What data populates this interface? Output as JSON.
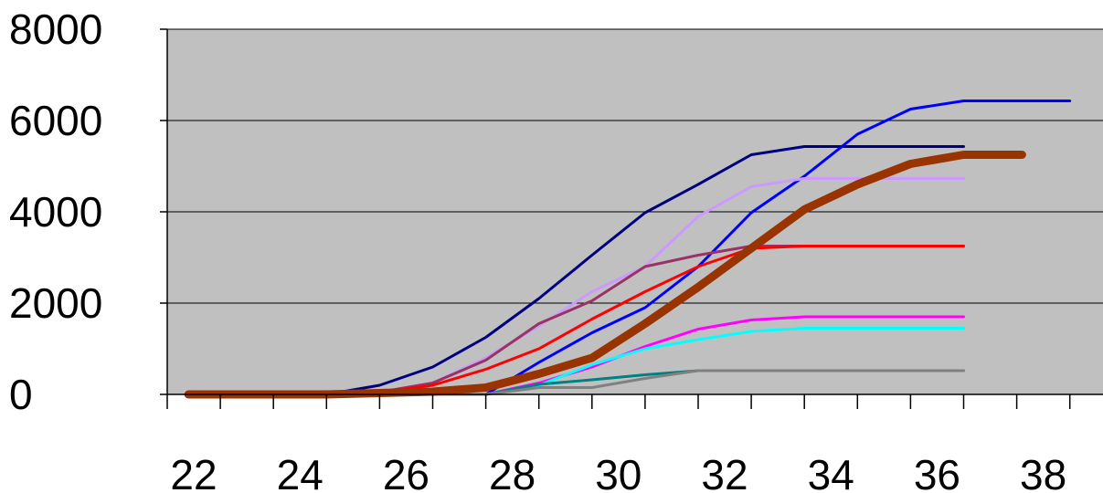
{
  "chart_data": {
    "type": "line",
    "xlabel": "",
    "ylabel": "",
    "xlim": [
      22,
      39
    ],
    "ylim": [
      0,
      8000
    ],
    "x_ticks": [
      22,
      24,
      26,
      28,
      30,
      32,
      34,
      36,
      38
    ],
    "y_ticks": [
      0,
      2000,
      4000,
      6000,
      8000
    ],
    "x_tick_labels": [
      "22",
      "24",
      "26",
      "28",
      "30",
      "32",
      "34",
      "36",
      "38"
    ],
    "y_tick_labels": [
      "0",
      "2000",
      "4000",
      "6000",
      "8000"
    ],
    "grid": "horizontal",
    "plot_background": "#c0c0c0",
    "series": [
      {
        "color": "#000080",
        "width": 3,
        "points": [
          [
            22.4,
            0
          ],
          [
            25,
            0
          ],
          [
            26,
            200
          ],
          [
            27,
            600
          ],
          [
            28,
            1250
          ],
          [
            29,
            2100
          ],
          [
            30,
            3050
          ],
          [
            31,
            3980
          ],
          [
            32,
            4600
          ],
          [
            33,
            5250
          ],
          [
            34,
            5430
          ],
          [
            37,
            5430
          ]
        ]
      },
      {
        "color": "#0000ff",
        "width": 3,
        "points": [
          [
            22.4,
            0
          ],
          [
            28,
            0
          ],
          [
            29,
            700
          ],
          [
            30,
            1350
          ],
          [
            31,
            1900
          ],
          [
            32,
            2800
          ],
          [
            33,
            3980
          ],
          [
            34,
            4780
          ],
          [
            35,
            5700
          ],
          [
            36,
            6250
          ],
          [
            37,
            6430
          ],
          [
            39,
            6430
          ]
        ]
      },
      {
        "color": "#cc99ff",
        "width": 3,
        "points": [
          [
            22.4,
            0
          ],
          [
            26,
            50
          ],
          [
            27,
            250
          ],
          [
            28,
            800
          ],
          [
            29,
            1500
          ],
          [
            30,
            2250
          ],
          [
            31,
            2800
          ],
          [
            32,
            3900
          ],
          [
            33,
            4550
          ],
          [
            34,
            4730
          ],
          [
            37,
            4730
          ]
        ]
      },
      {
        "color": "#993366",
        "width": 3,
        "points": [
          [
            22.4,
            0
          ],
          [
            26,
            50
          ],
          [
            27,
            250
          ],
          [
            28,
            750
          ],
          [
            29,
            1550
          ],
          [
            30,
            2050
          ],
          [
            31,
            2800
          ],
          [
            32,
            3050
          ],
          [
            33,
            3250
          ],
          [
            37,
            3250
          ]
        ]
      },
      {
        "color": "#ff0000",
        "width": 3,
        "points": [
          [
            22.4,
            0
          ],
          [
            26,
            50
          ],
          [
            27,
            200
          ],
          [
            28,
            550
          ],
          [
            29,
            1000
          ],
          [
            30,
            1650
          ],
          [
            31,
            2250
          ],
          [
            32,
            2800
          ],
          [
            33,
            3200
          ],
          [
            34,
            3250
          ],
          [
            37,
            3250
          ]
        ]
      },
      {
        "color": "#ff00ff",
        "width": 3,
        "points": [
          [
            22.4,
            0
          ],
          [
            28,
            0
          ],
          [
            29,
            250
          ],
          [
            30,
            600
          ],
          [
            31,
            1050
          ],
          [
            32,
            1430
          ],
          [
            33,
            1630
          ],
          [
            34,
            1700
          ],
          [
            37,
            1700
          ]
        ]
      },
      {
        "color": "#00ffff",
        "width": 3,
        "points": [
          [
            22.4,
            0
          ],
          [
            28,
            0
          ],
          [
            29,
            200
          ],
          [
            30,
            650
          ],
          [
            31,
            1000
          ],
          [
            32,
            1200
          ],
          [
            33,
            1380
          ],
          [
            34,
            1450
          ],
          [
            37,
            1450
          ]
        ]
      },
      {
        "color": "#008080",
        "width": 3,
        "points": [
          [
            22.4,
            0
          ],
          [
            28,
            0
          ],
          [
            29,
            220
          ],
          [
            30,
            320
          ],
          [
            31,
            430
          ],
          [
            32,
            520
          ],
          [
            37,
            520
          ]
        ]
      },
      {
        "color": "#808080",
        "width": 3,
        "points": [
          [
            22.4,
            0
          ],
          [
            28,
            0
          ],
          [
            29,
            150
          ],
          [
            30,
            150
          ],
          [
            31,
            350
          ],
          [
            32,
            520
          ],
          [
            37,
            520
          ]
        ]
      },
      {
        "color": "#993300",
        "width": 9,
        "points": [
          [
            22.4,
            0
          ],
          [
            25,
            0
          ],
          [
            26,
            30
          ],
          [
            27,
            60
          ],
          [
            28,
            150
          ],
          [
            29,
            450
          ],
          [
            30,
            800
          ],
          [
            31,
            1550
          ],
          [
            32,
            2350
          ],
          [
            33,
            3200
          ],
          [
            34,
            4050
          ],
          [
            35,
            4600
          ],
          [
            36,
            5050
          ],
          [
            37,
            5250
          ],
          [
            38.1,
            5250
          ]
        ]
      }
    ]
  }
}
